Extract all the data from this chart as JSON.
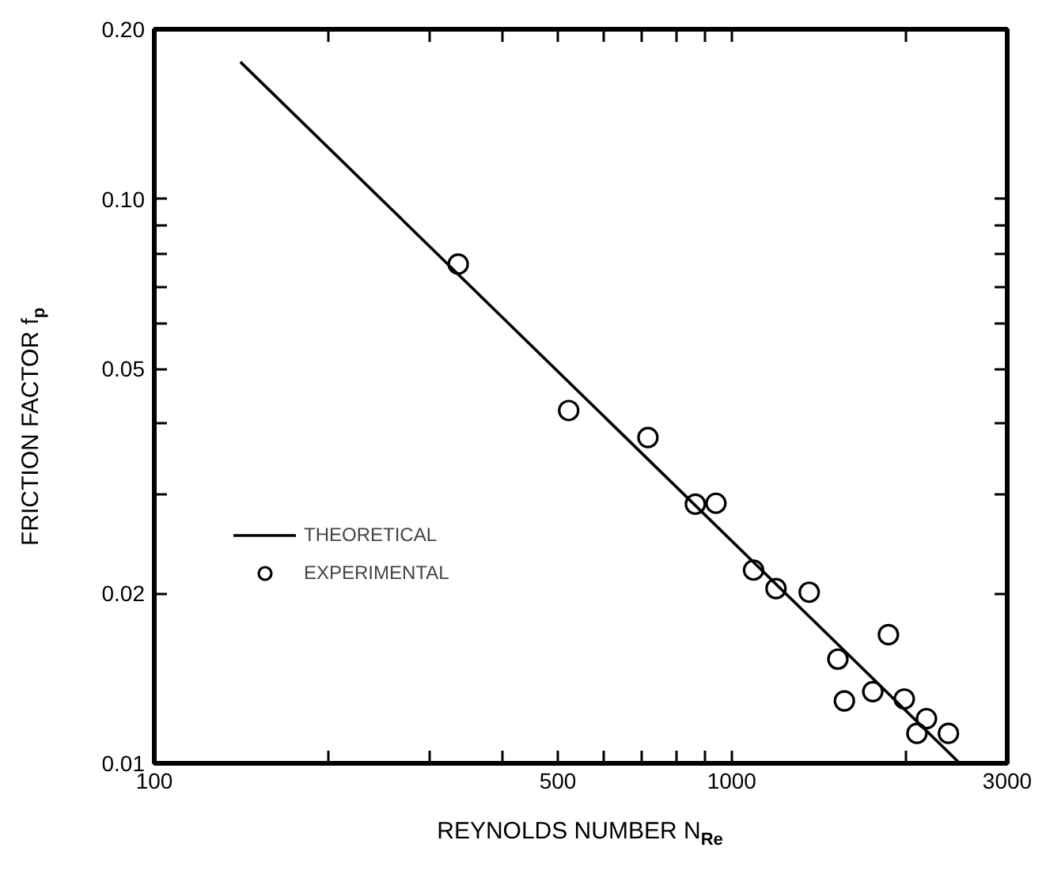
{
  "chart_data": {
    "type": "scatter",
    "xlabel": "REYNOLDS NUMBER N$_{Re}$",
    "ylabel": "FRICTION FACTOR f$_{p}$",
    "log": "xy",
    "xlim": [
      100,
      3000
    ],
    "ylim": [
      0.01,
      0.2
    ],
    "xticks": [
      100,
      {
        "value": 200,
        "label": null
      },
      {
        "value": 300,
        "label": null
      },
      {
        "value": 400,
        "label": null
      },
      500,
      {
        "value": 600,
        "label": null
      },
      {
        "value": 700,
        "label": null
      },
      {
        "value": 800,
        "label": null
      },
      {
        "value": 900,
        "label": null
      },
      1000,
      {
        "value": 2000,
        "label": null
      },
      3000
    ],
    "yticks": [
      0.01,
      0.02,
      {
        "value": 0.03,
        "label": null
      },
      {
        "value": 0.04,
        "label": null
      },
      0.05,
      {
        "value": 0.06,
        "label": null
      },
      {
        "value": 0.07,
        "label": null
      },
      {
        "value": 0.08,
        "label": null
      },
      {
        "value": 0.09,
        "label": null
      },
      {
        "value": 0.1,
        "label": "0.10"
      },
      {
        "value": 0.2,
        "label": "0.20"
      }
    ],
    "grid": false,
    "legend": "left",
    "marker": "circle",
    "series": [
      {
        "name": "THEORETICAL",
        "type": "line",
        "marker": "none",
        "color": "#000000",
        "x": [
          141,
          2483
        ],
        "values": [
          0.175,
          0.01
        ]
      },
      {
        "name": "EXPERIMENTAL",
        "color": "#000000",
        "x": [
          336,
          522,
          716,
          865,
          939,
          1091,
          1193,
          1362,
          1527,
          1868,
          1567,
          1755,
          1990,
          2174,
          2093,
          2373
        ],
        "values": [
          0.0767,
          0.0422,
          0.0378,
          0.0288,
          0.0289,
          0.022,
          0.0204,
          0.0201,
          0.0153,
          0.0169,
          0.0129,
          0.0134,
          0.013,
          0.012,
          0.0113,
          0.0113
        ]
      }
    ]
  }
}
